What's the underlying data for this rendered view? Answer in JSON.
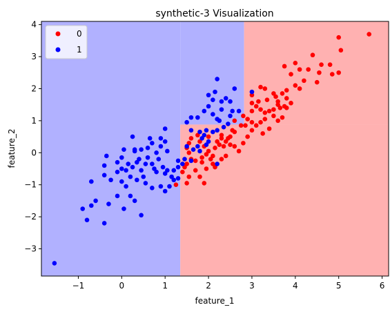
{
  "chart_data": {
    "type": "scatter",
    "title": "synthetic-3 Visualization",
    "xlabel": "feature_1",
    "ylabel": "feature_2",
    "xlim": [
      -1.85,
      6.15
    ],
    "ylim": [
      -3.85,
      4.1
    ],
    "xticks": [
      -1,
      0,
      1,
      2,
      3,
      4,
      5,
      6
    ],
    "yticks": [
      -3,
      -2,
      -1,
      0,
      1,
      2,
      3,
      4
    ],
    "grid": false,
    "legend": {
      "placement": "top-left",
      "entries": [
        "0",
        "1"
      ]
    },
    "colors": {
      "class0_point": "#ff0000",
      "class1_point": "#0000ff",
      "region_class0": "#ffb1b1",
      "region_class1": "#b1b1ff"
    },
    "decision_regions": [
      {
        "label": "1",
        "x": [
          -1.85,
          1.35
        ],
        "y": [
          -3.85,
          4.1
        ]
      },
      {
        "label": "1",
        "x": [
          1.35,
          2.82
        ],
        "y": [
          0.88,
          4.1
        ]
      },
      {
        "label": "0",
        "x": [
          1.35,
          6.15
        ],
        "y": [
          -3.85,
          0.88
        ]
      },
      {
        "label": "0",
        "x": [
          2.82,
          6.15
        ],
        "y": [
          0.88,
          4.1
        ]
      }
    ],
    "series": [
      {
        "name": "0",
        "color": "#ff0000",
        "points": [
          [
            5.7,
            3.7
          ],
          [
            5.0,
            3.6
          ],
          [
            5.05,
            3.2
          ],
          [
            4.4,
            3.05
          ],
          [
            4.6,
            2.75
          ],
          [
            4.8,
            2.75
          ],
          [
            4.55,
            2.5
          ],
          [
            4.85,
            2.45
          ],
          [
            5.0,
            2.5
          ],
          [
            4.0,
            2.8
          ],
          [
            4.1,
            2.6
          ],
          [
            4.3,
            2.6
          ],
          [
            3.75,
            2.7
          ],
          [
            3.9,
            2.45
          ],
          [
            4.2,
            2.25
          ],
          [
            4.5,
            2.2
          ],
          [
            4.0,
            2.1
          ],
          [
            4.1,
            2.0
          ],
          [
            3.8,
            1.95
          ],
          [
            3.7,
            1.85
          ],
          [
            3.55,
            1.75
          ],
          [
            3.0,
            1.8
          ],
          [
            3.2,
            2.05
          ],
          [
            3.3,
            2.0
          ],
          [
            3.35,
            1.65
          ],
          [
            3.5,
            1.85
          ],
          [
            3.6,
            1.6
          ],
          [
            3.15,
            1.6
          ],
          [
            3.0,
            1.55
          ],
          [
            3.8,
            1.7
          ],
          [
            3.9,
            1.55
          ],
          [
            3.75,
            1.45
          ],
          [
            3.6,
            1.5
          ],
          [
            3.65,
            1.4
          ],
          [
            3.5,
            1.35
          ],
          [
            3.4,
            1.3
          ],
          [
            3.3,
            1.25
          ],
          [
            3.2,
            1.35
          ],
          [
            3.1,
            1.45
          ],
          [
            3.0,
            1.3
          ],
          [
            3.8,
            1.4
          ],
          [
            2.9,
            1.05
          ],
          [
            2.8,
            1.15
          ],
          [
            3.3,
            1.05
          ],
          [
            3.6,
            1.0
          ],
          [
            3.7,
            1.1
          ],
          [
            3.5,
            1.15
          ],
          [
            3.2,
            0.95
          ],
          [
            3.1,
            0.85
          ],
          [
            3.0,
            0.95
          ],
          [
            2.85,
            0.85
          ],
          [
            2.75,
            0.85
          ],
          [
            2.6,
            0.65
          ],
          [
            2.6,
            1.0
          ],
          [
            3.4,
            0.75
          ],
          [
            3.0,
            0.7
          ],
          [
            3.25,
            0.6
          ],
          [
            2.9,
            0.5
          ],
          [
            2.5,
            0.5
          ],
          [
            2.4,
            0.35
          ],
          [
            2.45,
            0.45
          ],
          [
            2.3,
            0.45
          ],
          [
            2.25,
            0.25
          ],
          [
            2.2,
            0.35
          ],
          [
            2.15,
            0.15
          ],
          [
            2.35,
            0.2
          ],
          [
            2.5,
            0.25
          ],
          [
            2.6,
            0.2
          ],
          [
            2.7,
            0.05
          ],
          [
            2.8,
            0.3
          ],
          [
            2.4,
            -0.1
          ],
          [
            2.3,
            -0.2
          ],
          [
            2.1,
            -0.1
          ],
          [
            2.05,
            -0.2
          ],
          [
            2.0,
            0.05
          ],
          [
            1.95,
            -0.05
          ],
          [
            1.9,
            0.2
          ],
          [
            1.85,
            -0.15
          ],
          [
            1.85,
            -0.3
          ],
          [
            1.7,
            -0.25
          ],
          [
            1.6,
            -0.2
          ],
          [
            1.55,
            0.0
          ],
          [
            1.5,
            0.15
          ],
          [
            1.55,
            0.3
          ],
          [
            1.6,
            0.45
          ],
          [
            1.75,
            0.55
          ],
          [
            1.8,
            0.35
          ],
          [
            2.0,
            0.5
          ],
          [
            1.5,
            -0.35
          ],
          [
            1.45,
            -0.45
          ],
          [
            1.4,
            -0.6
          ],
          [
            1.5,
            -0.95
          ],
          [
            1.55,
            -0.75
          ],
          [
            1.7,
            -0.55
          ],
          [
            1.8,
            -0.75
          ],
          [
            1.9,
            -0.95
          ],
          [
            1.95,
            -0.5
          ],
          [
            2.1,
            -0.35
          ],
          [
            2.15,
            -0.45
          ],
          [
            1.25,
            -1.0
          ],
          [
            2.3,
            0.55
          ],
          [
            2.55,
            0.7
          ]
        ]
      },
      {
        "name": "1",
        "color": "#0000ff",
        "points": [
          [
            -1.55,
            -3.45
          ],
          [
            -0.4,
            -2.2
          ],
          [
            -0.8,
            -2.1
          ],
          [
            -0.9,
            -1.75
          ],
          [
            -0.7,
            -1.65
          ],
          [
            -0.6,
            -1.5
          ],
          [
            -0.3,
            -1.6
          ],
          [
            -0.1,
            -1.35
          ],
          [
            0.05,
            -1.75
          ],
          [
            0.2,
            -1.35
          ],
          [
            0.45,
            -1.95
          ],
          [
            0.3,
            -1.5
          ],
          [
            0.1,
            -1.05
          ],
          [
            -0.1,
            -0.6
          ],
          [
            -0.25,
            -0.85
          ],
          [
            0.0,
            -0.9
          ],
          [
            0.2,
            -0.75
          ],
          [
            0.35,
            -0.85
          ],
          [
            0.5,
            -0.75
          ],
          [
            0.55,
            -0.95
          ],
          [
            0.7,
            -1.1
          ],
          [
            0.8,
            -0.6
          ],
          [
            0.9,
            -1.05
          ],
          [
            1.0,
            -1.2
          ],
          [
            1.1,
            -1.05
          ],
          [
            1.2,
            -0.85
          ],
          [
            1.15,
            -0.75
          ],
          [
            1.3,
            -0.8
          ],
          [
            1.0,
            -0.65
          ],
          [
            0.95,
            -0.45
          ],
          [
            1.05,
            -0.55
          ],
          [
            1.2,
            -0.55
          ],
          [
            1.3,
            -0.45
          ],
          [
            -0.4,
            -0.7
          ],
          [
            -0.4,
            -0.4
          ],
          [
            -0.7,
            -0.9
          ],
          [
            -0.35,
            -0.1
          ],
          [
            -0.1,
            -0.3
          ],
          [
            0.0,
            -0.5
          ],
          [
            0.1,
            -0.55
          ],
          [
            0.15,
            -0.35
          ],
          [
            0.25,
            -0.45
          ],
          [
            0.35,
            -0.3
          ],
          [
            0.4,
            -0.2
          ],
          [
            0.45,
            -0.55
          ],
          [
            0.55,
            -0.35
          ],
          [
            0.6,
            -0.15
          ],
          [
            0.7,
            -0.35
          ],
          [
            0.75,
            -0.5
          ],
          [
            0.85,
            -0.2
          ],
          [
            0.3,
            0.05
          ],
          [
            0.45,
            0.1
          ],
          [
            0.6,
            0.15
          ],
          [
            0.8,
            0.0
          ],
          [
            0.9,
            0.2
          ],
          [
            1.05,
            0.05
          ],
          [
            0.65,
            0.45
          ],
          [
            0.7,
            0.3
          ],
          [
            0.9,
            0.45
          ],
          [
            1.0,
            0.35
          ],
          [
            0.25,
            0.5
          ],
          [
            0.3,
            0.1
          ],
          [
            0.05,
            0.1
          ],
          [
            0.0,
            -0.15
          ],
          [
            1.0,
            0.75
          ],
          [
            1.3,
            -0.25
          ],
          [
            1.45,
            -0.2
          ],
          [
            1.4,
            -0.35
          ],
          [
            1.6,
            -0.25
          ],
          [
            1.5,
            0.2
          ],
          [
            1.65,
            0.1
          ],
          [
            1.75,
            0.2
          ],
          [
            1.8,
            0.05
          ],
          [
            1.85,
            0.45
          ],
          [
            1.9,
            0.55
          ],
          [
            1.95,
            0.25
          ],
          [
            2.0,
            0.35
          ],
          [
            2.1,
            0.65
          ],
          [
            2.2,
            0.7
          ],
          [
            2.25,
            1.0
          ],
          [
            2.35,
            0.8
          ],
          [
            2.45,
            0.9
          ],
          [
            2.5,
            1.15
          ],
          [
            2.55,
            1.3
          ],
          [
            2.3,
            1.35
          ],
          [
            2.2,
            1.05
          ],
          [
            2.1,
            1.2
          ],
          [
            2.0,
            1.45
          ],
          [
            1.75,
            1.1
          ],
          [
            1.6,
            1.1
          ],
          [
            1.5,
            0.95
          ],
          [
            2.0,
            1.8
          ],
          [
            2.15,
            1.9
          ],
          [
            2.2,
            2.3
          ],
          [
            2.4,
            1.7
          ],
          [
            2.3,
            1.6
          ],
          [
            2.1,
            1.65
          ],
          [
            1.9,
            1.3
          ],
          [
            2.6,
            2.0
          ],
          [
            2.5,
            1.6
          ],
          [
            2.7,
            1.3
          ],
          [
            3.0,
            1.9
          ],
          [
            2.2,
            -0.35
          ],
          [
            1.95,
            0.7
          ],
          [
            1.8,
            0.65
          ],
          [
            1.6,
            0.7
          ]
        ]
      }
    ]
  }
}
